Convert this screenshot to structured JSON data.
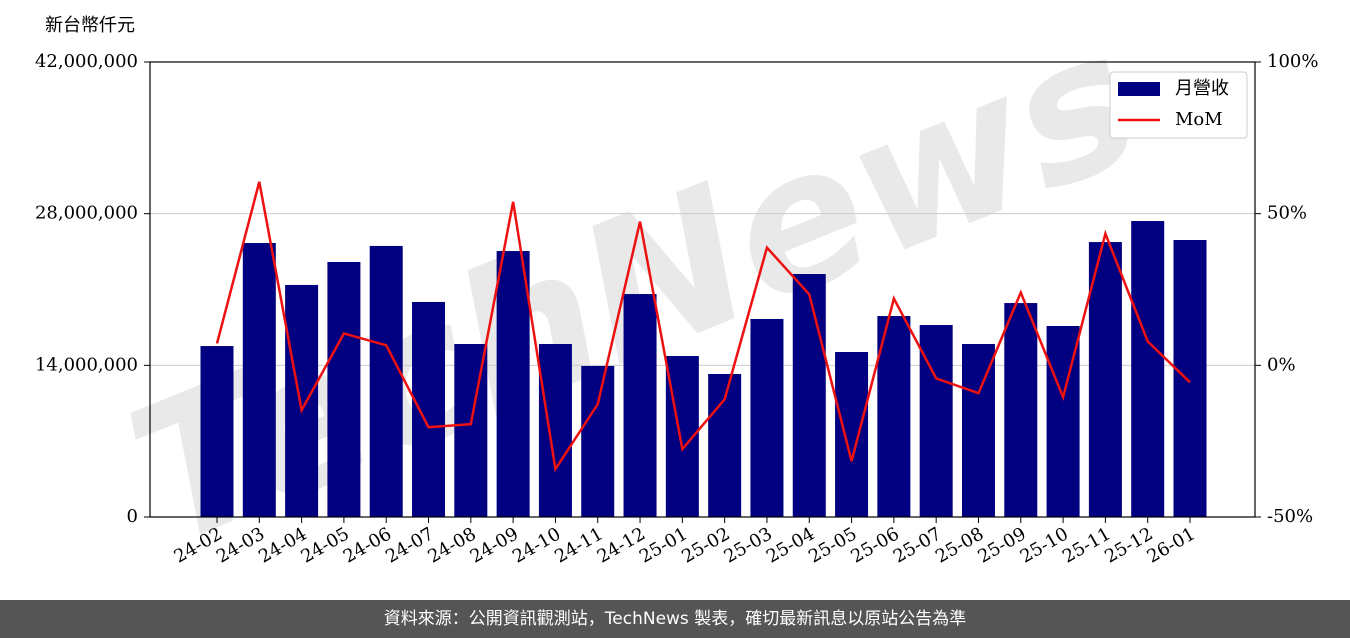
{
  "chart_data": {
    "type": "bar-line",
    "y_label": "新台幣仟元",
    "watermark": "TechNews",
    "categories": [
      "24-02",
      "24-03",
      "24-04",
      "24-05",
      "24-06",
      "24-07",
      "24-08",
      "24-09",
      "24-10",
      "24-11",
      "24-12",
      "25-01",
      "25-02",
      "25-03",
      "25-04",
      "25-05",
      "25-06",
      "25-07",
      "25-08",
      "25-09",
      "25-10",
      "25-11",
      "25-12",
      "26-01"
    ],
    "series": [
      {
        "name": "月營收",
        "type": "bar",
        "color": "#000080",
        "values": [
          15780000,
          25290000,
          21420000,
          23540000,
          25020000,
          19850000,
          15970000,
          24550000,
          15970000,
          13940000,
          20580000,
          14860000,
          13200000,
          18280000,
          22430000,
          15230000,
          18550000,
          17720000,
          15970000,
          19750000,
          17630000,
          25380000,
          27320000,
          25570000
        ]
      },
      {
        "name": "MoM",
        "type": "line",
        "color": "#ee1111",
        "axis": "y2",
        "values": [
          7.2,
          60.5,
          -14.8,
          10.5,
          6.6,
          -20.4,
          -19.4,
          53.9,
          -34.2,
          -12.8,
          47.4,
          -27.6,
          -11.2,
          38.8,
          23.4,
          -31.6,
          22,
          -4.3,
          -9.2,
          24,
          -10.5,
          43.4,
          7.9,
          -5.6
        ]
      }
    ],
    "ylim": [
      0,
      42000000
    ],
    "yticks": [
      {
        "value": 0,
        "label": "0"
      },
      {
        "value": 14000000,
        "label": "14,000,000"
      },
      {
        "value": 28000000,
        "label": "28,000,000"
      },
      {
        "value": 42000000,
        "label": "42,000,000"
      }
    ],
    "y2lim": [
      -50,
      100
    ],
    "y2ticks": [
      {
        "value": -50,
        "label": "-50%"
      },
      {
        "value": 0,
        "label": "0%"
      },
      {
        "value": 50,
        "label": "50%"
      },
      {
        "value": 100,
        "label": "100%"
      }
    ],
    "grid": true,
    "legend": "upper right"
  },
  "footer": "資料來源：公開資訊觀測站，TechNews 製表，確切最新訊息以原站公告為準"
}
